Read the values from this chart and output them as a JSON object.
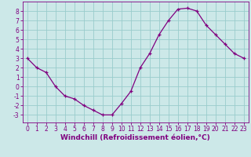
{
  "x": [
    0,
    1,
    2,
    3,
    4,
    5,
    6,
    7,
    8,
    9,
    10,
    11,
    12,
    13,
    14,
    15,
    16,
    17,
    18,
    19,
    20,
    21,
    22,
    23
  ],
  "y": [
    3.0,
    2.0,
    1.5,
    0.0,
    -1.0,
    -1.3,
    -2.0,
    -2.5,
    -3.0,
    -3.0,
    -1.8,
    -0.5,
    2.0,
    3.5,
    5.5,
    7.0,
    8.2,
    8.3,
    8.0,
    6.5,
    5.5,
    4.5,
    3.5,
    3.0
  ],
  "line_color": "#800080",
  "marker": "+",
  "bg_color": "#cce8e8",
  "grid_color": "#99cccc",
  "xlabel": "Windchill (Refroidissement éolien,°C)",
  "ylim": [
    -3.8,
    9.0
  ],
  "xlim": [
    -0.5,
    23.5
  ],
  "yticks": [
    -3,
    -2,
    -1,
    0,
    1,
    2,
    3,
    4,
    5,
    6,
    7,
    8
  ],
  "xticks": [
    0,
    1,
    2,
    3,
    4,
    5,
    6,
    7,
    8,
    9,
    10,
    11,
    12,
    13,
    14,
    15,
    16,
    17,
    18,
    19,
    20,
    21,
    22,
    23
  ],
  "tick_color": "#800080",
  "label_color": "#800080",
  "axis_font_size": 5.5,
  "xlabel_font_size": 6.5
}
